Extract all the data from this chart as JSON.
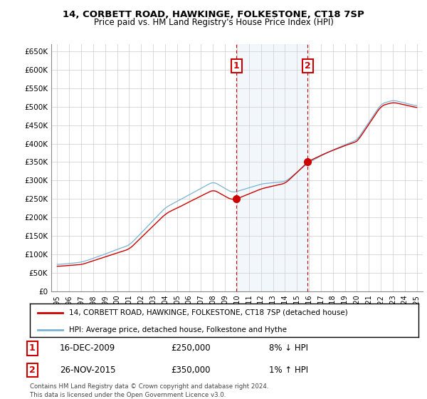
{
  "title": "14, CORBETT ROAD, HAWKINGE, FOLKESTONE, CT18 7SP",
  "subtitle": "Price paid vs. HM Land Registry's House Price Index (HPI)",
  "legend_line1": "14, CORBETT ROAD, HAWKINGE, FOLKESTONE, CT18 7SP (detached house)",
  "legend_line2": "HPI: Average price, detached house, Folkestone and Hythe",
  "annotation1_label": "1",
  "annotation1_date": "16-DEC-2009",
  "annotation1_price": "£250,000",
  "annotation1_hpi": "8% ↓ HPI",
  "annotation1_year": 2009.96,
  "annotation1_value": 250000,
  "annotation2_label": "2",
  "annotation2_date": "26-NOV-2015",
  "annotation2_price": "£350,000",
  "annotation2_hpi": "1% ↑ HPI",
  "annotation2_year": 2015.9,
  "annotation2_value": 350000,
  "footer": "Contains HM Land Registry data © Crown copyright and database right 2024.\nThis data is licensed under the Open Government Licence v3.0.",
  "hpi_color": "#7ab3d4",
  "price_color": "#cc0000",
  "shaded_color": "#dce9f5",
  "vline_color": "#cc0000",
  "grid_color": "#cccccc",
  "ylim_min": 0,
  "ylim_max": 670000,
  "ytick_values": [
    0,
    50000,
    100000,
    150000,
    200000,
    250000,
    300000,
    350000,
    400000,
    450000,
    500000,
    550000,
    600000,
    650000
  ],
  "ytick_labels": [
    "£0",
    "£50K",
    "£100K",
    "£150K",
    "£200K",
    "£250K",
    "£300K",
    "£350K",
    "£400K",
    "£450K",
    "£500K",
    "£550K",
    "£600K",
    "£650K"
  ],
  "xtick_years": [
    1995,
    1996,
    1997,
    1998,
    1999,
    2000,
    2001,
    2002,
    2003,
    2004,
    2005,
    2006,
    2007,
    2008,
    2009,
    2010,
    2011,
    2012,
    2013,
    2014,
    2015,
    2016,
    2017,
    2018,
    2019,
    2020,
    2021,
    2022,
    2023,
    2024,
    2025
  ],
  "xlim_min": 1994.5,
  "xlim_max": 2025.5,
  "box_label_color": "#cc0000"
}
